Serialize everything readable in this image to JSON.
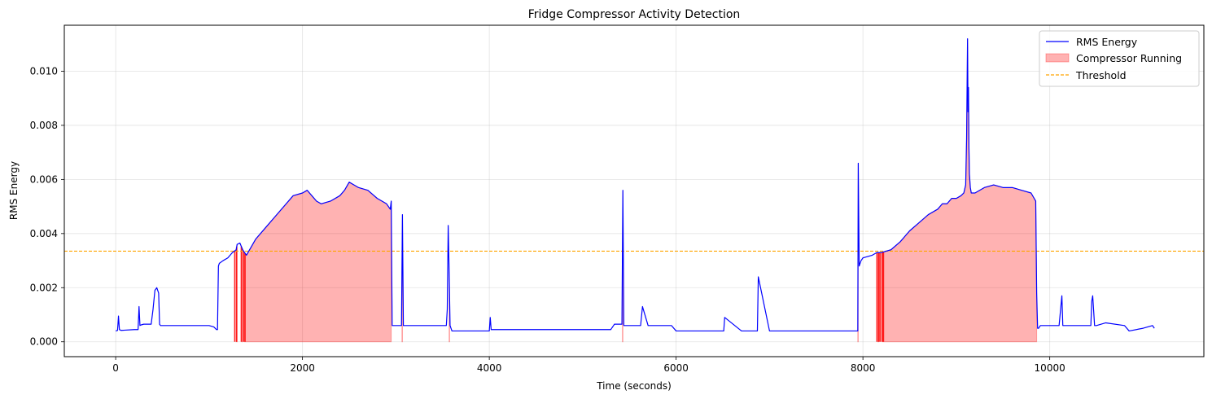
{
  "chart_data": {
    "type": "line",
    "title": "Fridge Compressor Activity Detection",
    "xlabel": "Time (seconds)",
    "ylabel": "RMS Energy",
    "xlim": [
      -550,
      11650
    ],
    "ylim": [
      -0.00055,
      0.0117
    ],
    "xticks": [
      0,
      2000,
      4000,
      6000,
      8000,
      10000
    ],
    "xtick_labels": [
      "0",
      "2000",
      "4000",
      "6000",
      "8000",
      "10000"
    ],
    "yticks": [
      0.0,
      0.002,
      0.004,
      0.006,
      0.008,
      0.01
    ],
    "ytick_labels": [
      "0.000",
      "0.002",
      "0.004",
      "0.006",
      "0.008",
      "0.010"
    ],
    "grid": true,
    "legend_position": "top-right",
    "threshold": 0.00335,
    "colors": {
      "rms": "#0000ff",
      "fill": "#ff0000",
      "threshold": "#ffa500",
      "grid": "#b0b0b0"
    },
    "legend": [
      {
        "label": "RMS Energy",
        "kind": "line"
      },
      {
        "label": "Compressor Running",
        "kind": "patch"
      },
      {
        "label": "Threshold",
        "kind": "dashed"
      }
    ],
    "series": [
      {
        "name": "RMS Energy",
        "x": [
          0,
          20,
          30,
          40,
          60,
          100,
          200,
          240,
          250,
          260,
          270,
          300,
          380,
          400,
          420,
          440,
          460,
          470,
          480,
          500,
          600,
          700,
          800,
          900,
          1000,
          1050,
          1080,
          1090,
          1100,
          1110,
          1150,
          1200,
          1250,
          1290,
          1300,
          1330,
          1360,
          1400,
          1450,
          1500,
          1600,
          1700,
          1800,
          1900,
          2000,
          2050,
          2100,
          2150,
          2200,
          2300,
          2400,
          2450,
          2500,
          2550,
          2600,
          2700,
          2800,
          2900,
          2940,
          2950,
          2960,
          3000,
          3060,
          3070,
          3080,
          3100,
          3200,
          3300,
          3350,
          3500,
          3540,
          3550,
          3560,
          3570,
          3580,
          3600,
          3700,
          3800,
          3900,
          4000,
          4010,
          4020,
          4100,
          4200,
          4300,
          4500,
          4700,
          4900,
          5000,
          5100,
          5200,
          5300,
          5330,
          5340,
          5400,
          5420,
          5430,
          5440,
          5460,
          5500,
          5600,
          5620,
          5640,
          5700,
          5800,
          5900,
          5950,
          6000,
          6200,
          6400,
          6500,
          6510,
          6520,
          6700,
          6860,
          6870,
          6880,
          7000,
          7200,
          7400,
          7600,
          7800,
          7900,
          7930,
          7940,
          7945,
          7950,
          7960,
          7980,
          8000,
          8100,
          8150,
          8200,
          8300,
          8400,
          8450,
          8500,
          8600,
          8700,
          8800,
          8850,
          8900,
          8950,
          9000,
          9050,
          9080,
          9100,
          9110,
          9120,
          9125,
          9130,
          9135,
          9140,
          9150,
          9160,
          9200,
          9300,
          9400,
          9500,
          9600,
          9700,
          9800,
          9850,
          9860,
          9870,
          9880,
          9900,
          10000,
          10100,
          10130,
          10140,
          10200,
          10300,
          10400,
          10440,
          10450,
          10460,
          10480,
          10500,
          10600,
          10800,
          10850,
          11000,
          11100,
          11120
        ],
        "y": [
          0.0004,
          0.00042,
          0.00095,
          0.00045,
          0.00042,
          0.00043,
          0.00045,
          0.00045,
          0.0013,
          0.0006,
          0.00062,
          0.00065,
          0.00065,
          0.0012,
          0.0019,
          0.002,
          0.0018,
          0.00065,
          0.0006,
          0.0006,
          0.0006,
          0.0006,
          0.0006,
          0.0006,
          0.0006,
          0.00055,
          0.00045,
          0.00045,
          0.0028,
          0.0029,
          0.003,
          0.0031,
          0.0033,
          0.0034,
          0.0036,
          0.00365,
          0.0034,
          0.0032,
          0.0035,
          0.0038,
          0.0042,
          0.0046,
          0.005,
          0.0054,
          0.0055,
          0.0056,
          0.0054,
          0.0052,
          0.0051,
          0.0052,
          0.0054,
          0.0056,
          0.0059,
          0.0058,
          0.0057,
          0.0056,
          0.0053,
          0.0051,
          0.0049,
          0.0052,
          0.0006,
          0.0006,
          0.0006,
          0.0047,
          0.0006,
          0.0006,
          0.0006,
          0.0006,
          0.0006,
          0.0006,
          0.0006,
          0.0012,
          0.0043,
          0.0026,
          0.0006,
          0.0004,
          0.0004,
          0.0004,
          0.0004,
          0.0004,
          0.0009,
          0.00045,
          0.00045,
          0.00045,
          0.00045,
          0.00045,
          0.00045,
          0.00045,
          0.00045,
          0.00045,
          0.00045,
          0.00045,
          0.0006,
          0.00065,
          0.00065,
          0.00065,
          0.0056,
          0.0006,
          0.0006,
          0.0006,
          0.0006,
          0.0006,
          0.0013,
          0.0006,
          0.0006,
          0.0006,
          0.0006,
          0.0004,
          0.0004,
          0.0004,
          0.0004,
          0.0004,
          0.0009,
          0.0004,
          0.0004,
          0.0004,
          0.0024,
          0.0004,
          0.0004,
          0.0004,
          0.0004,
          0.0004,
          0.0004,
          0.0004,
          0.0004,
          0.0004,
          0.0066,
          0.0028,
          0.003,
          0.0031,
          0.0032,
          0.0033,
          0.0033,
          0.0034,
          0.0037,
          0.0039,
          0.0041,
          0.0044,
          0.0047,
          0.0049,
          0.0051,
          0.0051,
          0.0053,
          0.0053,
          0.0054,
          0.0055,
          0.0058,
          0.0075,
          0.0112,
          0.0085,
          0.0094,
          0.0072,
          0.0062,
          0.0057,
          0.0055,
          0.0055,
          0.0057,
          0.0058,
          0.0057,
          0.0057,
          0.0056,
          0.0055,
          0.0052,
          0.0018,
          0.0005,
          0.0005,
          0.0006,
          0.0006,
          0.0006,
          0.0017,
          0.0006,
          0.0006,
          0.0006,
          0.0006,
          0.0006,
          0.0015,
          0.0017,
          0.0006,
          0.0006,
          0.0007,
          0.0006,
          0.0004,
          0.0005,
          0.0006,
          0.0005
        ]
      }
    ],
    "running_regions": [
      {
        "start": 1290,
        "end": 1300
      },
      {
        "start": 1350,
        "end": 1360
      },
      {
        "start": 1380,
        "end": 2950
      },
      {
        "start": 3065,
        "end": 3070
      },
      {
        "start": 3570,
        "end": 3575
      },
      {
        "start": 5425,
        "end": 5430
      },
      {
        "start": 7945,
        "end": 7950
      },
      {
        "start": 8160,
        "end": 8170
      },
      {
        "start": 8210,
        "end": 9860
      }
    ],
    "running_lines": [
      1275,
      1295,
      1345,
      1370,
      1385,
      8150,
      8170,
      8185,
      8205,
      8220
    ]
  }
}
